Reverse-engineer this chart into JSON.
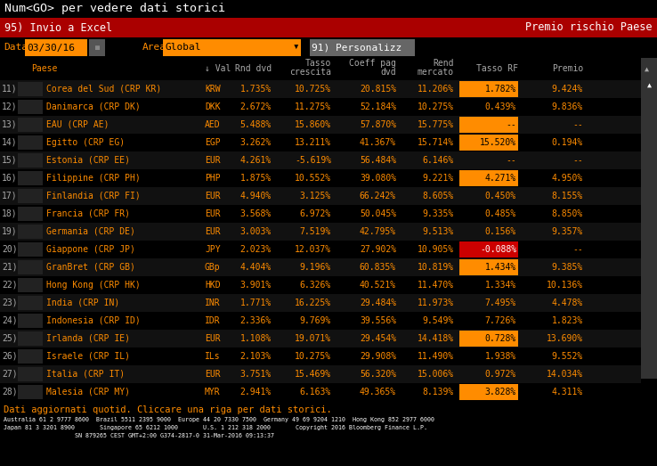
{
  "bg_color": "#000000",
  "title_text": "Num<GO> per vedere dati storici",
  "toolbar_text1": "95) Invio a Excel",
  "toolbar_text2": "Premio rischio Paese",
  "filter_date": "03/30/16",
  "filter_area_value": "Global",
  "filter_btn": "91) Personalizz",
  "rows": [
    {
      "num": "11)",
      "country": "Corea del Sud (CRP KR)",
      "val": "KRW",
      "rnd": "1.735%",
      "tasso": "10.725%",
      "coeff": "20.815%",
      "rend": "11.206%",
      "tassoRF": "1.782%",
      "premio": "9.424%",
      "rf_highlight": true,
      "rf_neg": false
    },
    {
      "num": "12)",
      "country": "Danimarca (CRP DK)",
      "val": "DKK",
      "rnd": "2.672%",
      "tasso": "11.275%",
      "coeff": "52.184%",
      "rend": "10.275%",
      "tassoRF": "0.439%",
      "premio": "9.836%",
      "rf_highlight": false,
      "rf_neg": false
    },
    {
      "num": "13)",
      "country": "EAU (CRP AE)",
      "val": "AED",
      "rnd": "5.488%",
      "tasso": "15.860%",
      "coeff": "57.870%",
      "rend": "15.775%",
      "tassoRF": "--",
      "premio": "--",
      "rf_highlight": true,
      "rf_neg": false
    },
    {
      "num": "14)",
      "country": "Egitto (CRP EG)",
      "val": "EGP",
      "rnd": "3.262%",
      "tasso": "13.211%",
      "coeff": "41.367%",
      "rend": "15.714%",
      "tassoRF": "15.520%",
      "premio": "0.194%",
      "rf_highlight": true,
      "rf_neg": false
    },
    {
      "num": "15)",
      "country": "Estonia (CRP EE)",
      "val": "EUR",
      "rnd": "4.261%",
      "tasso": "-5.619%",
      "coeff": "56.484%",
      "rend": "6.146%",
      "tassoRF": "--",
      "premio": "--",
      "rf_highlight": false,
      "rf_neg": false
    },
    {
      "num": "16)",
      "country": "Filippine (CRP PH)",
      "val": "PHP",
      "rnd": "1.875%",
      "tasso": "10.552%",
      "coeff": "39.080%",
      "rend": "9.221%",
      "tassoRF": "4.271%",
      "premio": "4.950%",
      "rf_highlight": true,
      "rf_neg": false
    },
    {
      "num": "17)",
      "country": "Finlandia (CRP FI)",
      "val": "EUR",
      "rnd": "4.940%",
      "tasso": "3.125%",
      "coeff": "66.242%",
      "rend": "8.605%",
      "tassoRF": "0.450%",
      "premio": "8.155%",
      "rf_highlight": false,
      "rf_neg": false
    },
    {
      "num": "18)",
      "country": "Francia (CRP FR)",
      "val": "EUR",
      "rnd": "3.568%",
      "tasso": "6.972%",
      "coeff": "50.045%",
      "rend": "9.335%",
      "tassoRF": "0.485%",
      "premio": "8.850%",
      "rf_highlight": false,
      "rf_neg": false
    },
    {
      "num": "19)",
      "country": "Germania (CRP DE)",
      "val": "EUR",
      "rnd": "3.003%",
      "tasso": "7.519%",
      "coeff": "42.795%",
      "rend": "9.513%",
      "tassoRF": "0.156%",
      "premio": "9.357%",
      "rf_highlight": false,
      "rf_neg": false
    },
    {
      "num": "20)",
      "country": "Giappone (CRP JP)",
      "val": "JPY",
      "rnd": "2.023%",
      "tasso": "12.037%",
      "coeff": "27.902%",
      "rend": "10.905%",
      "tassoRF": "-0.088%",
      "premio": "--",
      "rf_highlight": false,
      "rf_neg": true
    },
    {
      "num": "21)",
      "country": "GranBret (CRP GB)",
      "val": "GBp",
      "rnd": "4.404%",
      "tasso": "9.196%",
      "coeff": "60.835%",
      "rend": "10.819%",
      "tassoRF": "1.434%",
      "premio": "9.385%",
      "rf_highlight": true,
      "rf_neg": false
    },
    {
      "num": "22)",
      "country": "Hong Kong (CRP HK)",
      "val": "HKD",
      "rnd": "3.901%",
      "tasso": "6.326%",
      "coeff": "40.521%",
      "rend": "11.470%",
      "tassoRF": "1.334%",
      "premio": "10.136%",
      "rf_highlight": false,
      "rf_neg": false
    },
    {
      "num": "23)",
      "country": "India (CRP IN)",
      "val": "INR",
      "rnd": "1.771%",
      "tasso": "16.225%",
      "coeff": "29.484%",
      "rend": "11.973%",
      "tassoRF": "7.495%",
      "premio": "4.478%",
      "rf_highlight": false,
      "rf_neg": false
    },
    {
      "num": "24)",
      "country": "Indonesia (CRP ID)",
      "val": "IDR",
      "rnd": "2.336%",
      "tasso": "9.769%",
      "coeff": "39.556%",
      "rend": "9.549%",
      "tassoRF": "7.726%",
      "premio": "1.823%",
      "rf_highlight": false,
      "rf_neg": false
    },
    {
      "num": "25)",
      "country": "Irlanda (CRP IE)",
      "val": "EUR",
      "rnd": "1.108%",
      "tasso": "19.071%",
      "coeff": "29.454%",
      "rend": "14.418%",
      "tassoRF": "0.728%",
      "premio": "13.690%",
      "rf_highlight": true,
      "rf_neg": false
    },
    {
      "num": "26)",
      "country": "Israele (CRP IL)",
      "val": "ILs",
      "rnd": "2.103%",
      "tasso": "10.275%",
      "coeff": "29.908%",
      "rend": "11.490%",
      "tassoRF": "1.938%",
      "premio": "9.552%",
      "rf_highlight": false,
      "rf_neg": false
    },
    {
      "num": "27)",
      "country": "Italia (CRP IT)",
      "val": "EUR",
      "rnd": "3.751%",
      "tasso": "15.469%",
      "coeff": "56.320%",
      "rend": "15.006%",
      "tassoRF": "0.972%",
      "premio": "14.034%",
      "rf_highlight": false,
      "rf_neg": false
    },
    {
      "num": "28)",
      "country": "Malesia (CRP MY)",
      "val": "MYR",
      "rnd": "2.941%",
      "tasso": "6.163%",
      "coeff": "49.365%",
      "rend": "8.139%",
      "tassoRF": "3.828%",
      "premio": "4.311%",
      "rf_highlight": true,
      "rf_neg": false
    }
  ],
  "footer1": "Dati aggiornati quotid. Cliccare una riga per dati storici.",
  "footer2": "Australia 61 2 9777 8600  Brazil 5511 2395 9000  Europe 44 20 7330 7500  Germany 49 69 9204 1210  Hong Kong 852 2977 6000",
  "footer3": "Japan 81 3 3201 8900       Singapore 65 6212 1000       U.S. 1 212 318 2000       Copyright 2016 Bloomberg Finance L.P.",
  "footer4": "                    SN 879265 CEST GMT+2:00 G374-2817-0 31-Mar-2016 09:13:37",
  "orange": "#ff8c00",
  "red_neg": "#cc0000",
  "white": "#ffffff",
  "gray_text": "#aaaaaa",
  "dark_red": "#aa0000"
}
